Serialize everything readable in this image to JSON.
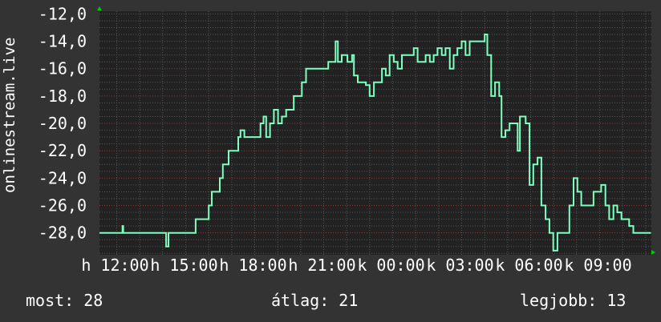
{
  "chart_data": {
    "type": "line",
    "ylabel": "onlinestream.live",
    "ylim": [
      -29.6,
      -11.8
    ],
    "yticks": [
      "-12,0",
      "-14,0",
      "-16,0",
      "-18,0",
      "-20,0",
      "-22,0",
      "-24,0",
      "-26,0",
      "-28,0"
    ],
    "ytick_values": [
      -12,
      -14,
      -16,
      -18,
      -20,
      -22,
      -24,
      -26,
      -28
    ],
    "xlim": [
      "11:15",
      "11:15"
    ],
    "xticks": [
      "h 12:00",
      "h 15:00",
      "h 18:00",
      "h 21:00",
      "k 00:00",
      "k 03:00",
      "k 06:00",
      "k 09:00"
    ],
    "xtick_times": [
      "12:00",
      "15:00",
      "18:00",
      "21:00",
      "00:00",
      "03:00",
      "06:00",
      "09:00"
    ],
    "grid": true,
    "colors": {
      "line": "#7fffbf",
      "background": "#333333",
      "plot": "#222222",
      "major_grid": "#8a3a3a",
      "minor_grid": "#555555",
      "arrow": "#00cc00"
    },
    "series": [
      {
        "x": [
          "11:15",
          "12:15",
          "12:17",
          "12:21",
          "14:09",
          "14:15",
          "14:20",
          "15:22",
          "15:26",
          "15:53",
          "16:00",
          "16:08",
          "16:20",
          "16:29",
          "16:37",
          "16:52",
          "17:06",
          "17:17",
          "17:23",
          "17:33",
          "18:09",
          "18:15",
          "18:23",
          "18:30",
          "18:40",
          "18:50",
          "19:01",
          "19:11",
          "19:22",
          "19:36",
          "19:42",
          "19:57",
          "20:03",
          "20:14",
          "21:06",
          "21:12",
          "21:24",
          "21:31",
          "21:37",
          "21:47",
          "22:02",
          "22:14",
          "22:19",
          "22:29",
          "22:50",
          "23:00",
          "23:11",
          "23:21",
          "23:32",
          "23:42",
          "23:52",
          "00:03",
          "00:13",
          "00:24",
          "00:44",
          "00:55",
          "01:05",
          "01:26",
          "01:37",
          "01:47",
          "01:57",
          "02:08",
          "02:18",
          "02:29",
          "02:39",
          "02:49",
          "03:00",
          "03:10",
          "03:21",
          "03:52",
          "04:00",
          "04:07",
          "04:17",
          "04:27",
          "04:38",
          "04:44",
          "04:54",
          "05:05",
          "05:15",
          "05:26",
          "05:32",
          "05:47",
          "05:57",
          "06:07",
          "06:18",
          "06:28",
          "06:39",
          "06:49",
          "06:59",
          "07:10",
          "07:31",
          "07:41",
          "07:52",
          "08:02",
          "08:12",
          "08:33",
          "08:44",
          "09:04",
          "09:15",
          "09:25",
          "09:36",
          "09:46",
          "09:57",
          "10:17",
          "10:28",
          "11:14"
        ],
        "y": [
          -28,
          -27.5,
          -28,
          -28,
          -29,
          -28,
          -28,
          -28,
          -27,
          -27,
          -26,
          -25,
          -25,
          -24,
          -23,
          -22,
          -22,
          -21,
          -20.5,
          -21,
          -21,
          -20,
          -19.5,
          -21,
          -20,
          -19,
          -20,
          -19.5,
          -19,
          -19,
          -18,
          -18,
          -17,
          -16,
          -16,
          -15.5,
          -15.5,
          -14,
          -15.5,
          -15,
          -15.5,
          -15,
          -16.5,
          -17,
          -17.2,
          -18,
          -17,
          -17,
          -16,
          -16.5,
          -15,
          -15.5,
          -16,
          -15,
          -15,
          -14.5,
          -15.5,
          -15,
          -15.5,
          -15,
          -14.5,
          -15,
          -14.5,
          -16,
          -15,
          -14.5,
          -14,
          -15,
          -14,
          -14,
          -13.5,
          -15,
          -18,
          -17,
          -18,
          -21,
          -20.5,
          -20,
          -20,
          -22,
          -19.5,
          -20,
          -24.5,
          -23,
          -22.5,
          -26,
          -27,
          -28,
          -29.3,
          -28,
          -28,
          -26,
          -24,
          -25,
          -26,
          -26,
          -25,
          -24.5,
          -26,
          -27,
          -26,
          -26.5,
          -27,
          -27.5,
          -28,
          -28
        ]
      }
    ]
  },
  "legend": {
    "current": "most: 28",
    "average": "átlag: 21",
    "best": "legjobb: 13"
  }
}
